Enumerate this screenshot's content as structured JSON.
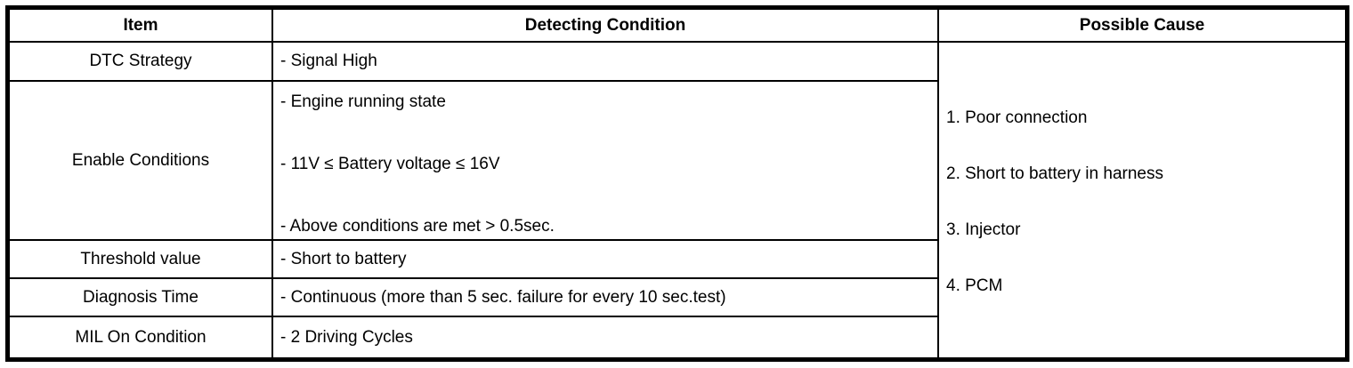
{
  "table": {
    "headers": {
      "item": "Item",
      "detecting_condition": "Detecting Condition",
      "possible_cause": "Possible Cause"
    },
    "rows": [
      {
        "item": "DTC Strategy",
        "conditions": [
          "- Signal High"
        ]
      },
      {
        "item": "Enable Conditions",
        "conditions": [
          "- Engine running state",
          "- 11V ≤ Battery voltage ≤ 16V",
          "- Above conditions are met > 0.5sec."
        ]
      },
      {
        "item": "Threshold value",
        "conditions": [
          "- Short to battery"
        ]
      },
      {
        "item": "Diagnosis Time",
        "conditions": [
          "- Continuous (more than 5 sec. failure for every 10 sec.test)"
        ]
      },
      {
        "item": "MIL On Condition",
        "conditions": [
          "- 2 Driving Cycles"
        ]
      }
    ],
    "possible_causes": [
      "1. Poor connection",
      "2. Short to battery in harness",
      "3. Injector",
      "4. PCM"
    ],
    "colors": {
      "border": "#000000",
      "text": "#000000",
      "background": "#ffffff"
    }
  }
}
